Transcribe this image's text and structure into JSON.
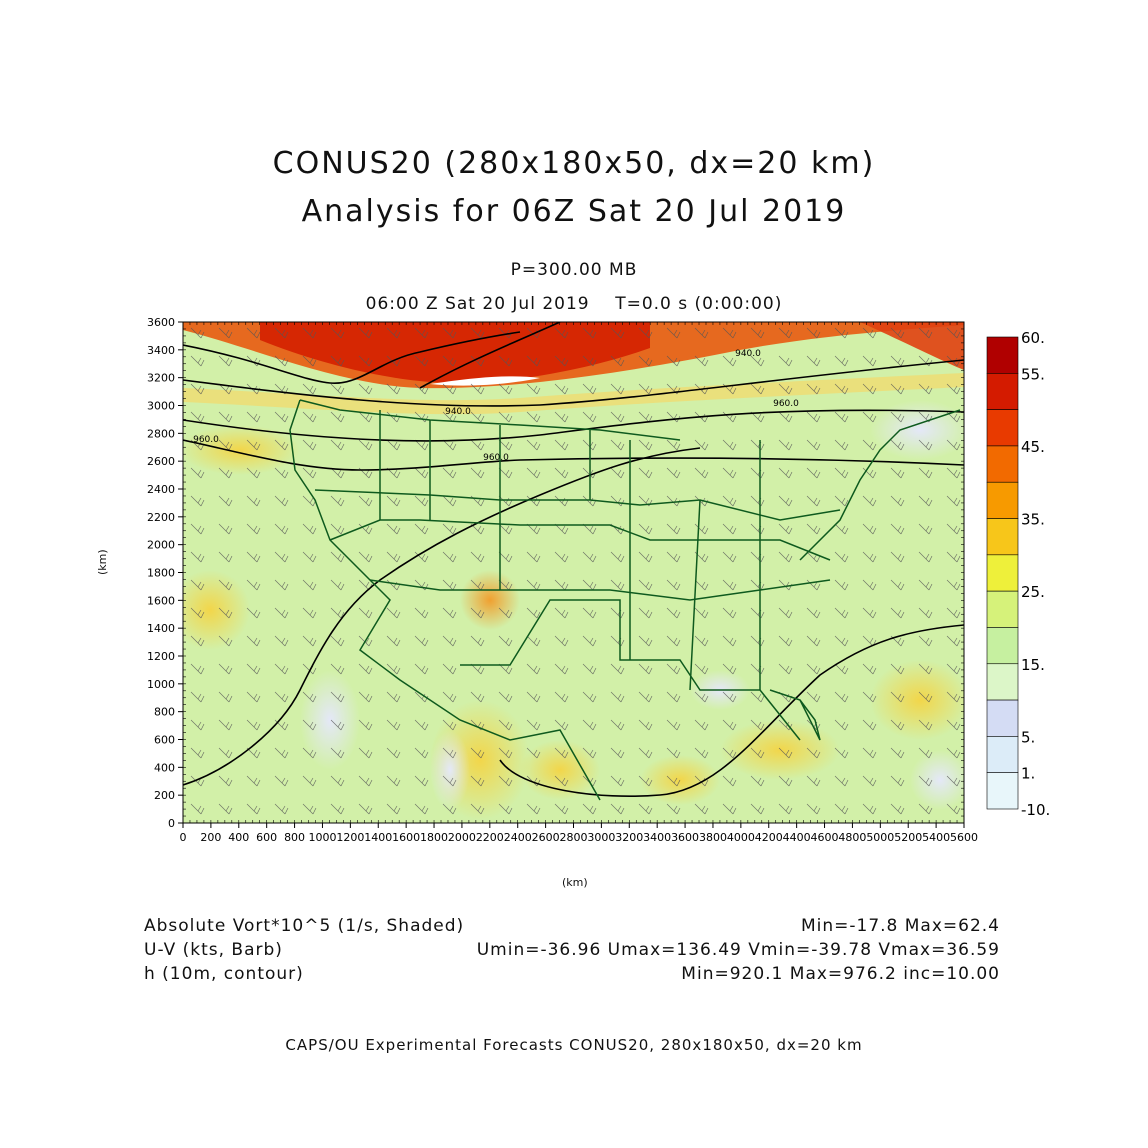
{
  "header": {
    "title_line1": "CONUS20 (280x180x50, dx=20 km)",
    "title_line2": "Analysis for 06Z Sat 20 Jul 2019",
    "level": "P=300.00 MB",
    "time": "06:00 Z Sat 20 Jul 2019    T=0.0 s (0:00:00)"
  },
  "axes": {
    "x_label": "(km)",
    "y_label": "(km)",
    "x_ticks": [
      "0",
      "200",
      "400",
      "600",
      "800",
      "1000",
      "1200",
      "1400",
      "1600",
      "1800",
      "2000",
      "2200",
      "2400",
      "2600",
      "2800",
      "3000",
      "3200",
      "3400",
      "3600",
      "3800",
      "4000",
      "4200",
      "4400",
      "4600",
      "4800",
      "5000",
      "5200",
      "5400",
      "5600"
    ],
    "y_ticks": [
      "0",
      "200",
      "400",
      "600",
      "800",
      "1000",
      "1200",
      "1400",
      "1600",
      "1800",
      "2000",
      "2200",
      "2400",
      "2600",
      "2800",
      "3000",
      "3200",
      "3400",
      "3600"
    ],
    "x_range": [
      0,
      5600
    ],
    "y_range": [
      0,
      3600
    ]
  },
  "colorbar": {
    "labels": [
      "60.",
      "55.",
      "45.",
      "35.",
      "25.",
      "15.",
      "5.",
      "1.",
      "-10."
    ],
    "colors": [
      "#b00000",
      "#d41b00",
      "#e83a00",
      "#f26a00",
      "#f79a00",
      "#f7c61a",
      "#eef03a",
      "#d6f27a",
      "#c6f0a0",
      "#dcf6c8",
      "#d4dcf4",
      "#dcecf8",
      "#e8f6fa"
    ]
  },
  "contours": {
    "labels": [
      "940.0",
      "940.0",
      "960.0",
      "960.0",
      "960.0"
    ]
  },
  "legend": {
    "field1_name": "Absolute Vort*10^5 (1/s, Shaded)",
    "field1_stats": "Min=-17.8 Max=62.4",
    "field2_name": "U-V (kts, Barb)",
    "field2_stats": "Umin=-36.96 Umax=136.49 Vmin=-39.78 Vmax=36.59",
    "field3_name": "h (10m, contour)",
    "field3_stats": "Min=920.1 Max=976.2 inc=10.00"
  },
  "footer": "CAPS/OU Experimental Forecasts  CONUS20, 280x180x50, dx=20 km",
  "colors": {
    "background_field": "#d2f0a8",
    "border_lines": "#0e5a1e",
    "contour_lines": "#000000"
  }
}
